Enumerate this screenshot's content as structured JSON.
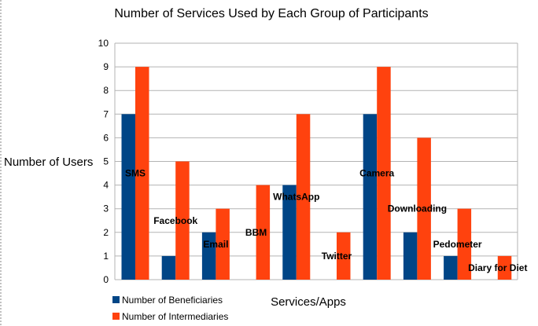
{
  "chart_data": {
    "type": "bar",
    "title": "Number of Services Used by Each Group of Participants",
    "xlabel": "Services/Apps",
    "ylabel": "Number of Users",
    "ylim": [
      0,
      10
    ],
    "yticks": [
      "0",
      "1",
      "2",
      "3",
      "4",
      "5",
      "6",
      "7",
      "8",
      "9",
      "10"
    ],
    "categories": [
      "SMS",
      "Facebook",
      "Email",
      "BBM",
      "WhatsApp",
      "Twitter",
      "Camera",
      "Downloading",
      "Pedometer",
      "Diary for Diet"
    ],
    "series": [
      {
        "name": "Number of Beneficiaries",
        "color": "#004586",
        "values": [
          7,
          1,
          2,
          0,
          4,
          0,
          7,
          2,
          1,
          0
        ]
      },
      {
        "name": "Number of Intermediaries",
        "color": "#ff420e",
        "values": [
          9,
          5,
          3,
          4,
          7,
          2,
          9,
          6,
          3,
          1
        ]
      }
    ],
    "category_label_values": [
      4.5,
      2.5,
      1.5,
      2,
      3.5,
      1,
      4.5,
      3,
      1.5,
      0.5
    ],
    "grid": true,
    "legend_position": "bottom-left"
  }
}
